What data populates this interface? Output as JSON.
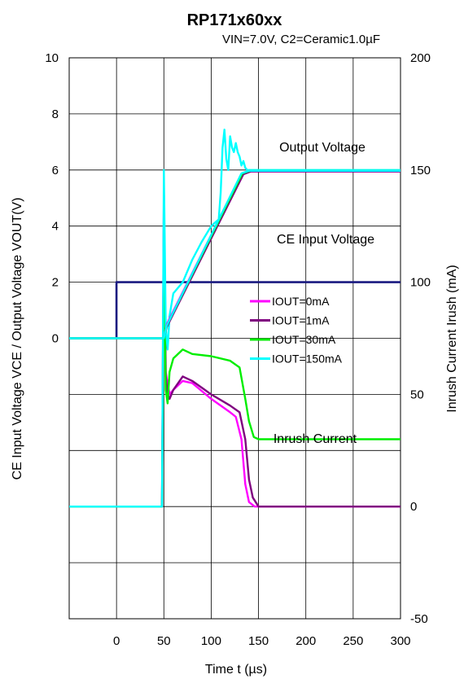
{
  "chart_data": {
    "type": "line",
    "title": "RP171x60xx",
    "subtitle": "VIN=7.0V, C2=Ceramic1.0µF",
    "xlabel": "Time t (µs)",
    "ylabel_left": "CE Input Voltage VCE / Output Voltage VOUT(V)",
    "ylabel_right": "Inrush Current Irush (mA)",
    "xlim": [
      -50,
      300
    ],
    "ylim_left": [
      -10,
      10
    ],
    "ylim_right": [
      -50,
      200
    ],
    "x_ticks": [
      "0",
      "50",
      "100",
      "150",
      "200",
      "250",
      "300"
    ],
    "y_ticks_left": [
      "0",
      "2",
      "4",
      "6",
      "8",
      "10"
    ],
    "y_ticks_right": [
      "-50",
      "0",
      "50",
      "100",
      "150",
      "200"
    ],
    "grid": true,
    "legend_position": "center-right",
    "annotations": {
      "output_voltage": "Output Voltage",
      "ce_input_voltage": "CE Input Voltage",
      "inrush_current": "Inrush Current"
    },
    "ce_input_voltage": {
      "name": "",
      "color": "#1a1a80",
      "axis": "left",
      "x": [
        -50,
        0,
        0,
        300
      ],
      "y": [
        0,
        0,
        2,
        2
      ]
    },
    "series": [
      {
        "name": "IOUT=0mA",
        "color": "#ff00ff",
        "vout": {
          "x": [
            -50,
            50,
            53,
            132,
            140,
            300
          ],
          "y": [
            0,
            0,
            0.5,
            5.85,
            5.95,
            5.95
          ]
        },
        "irush": {
          "x": [
            -50,
            48,
            50,
            52,
            54,
            56,
            60,
            70,
            80,
            100,
            120,
            126,
            132,
            136,
            140,
            146,
            150,
            300
          ],
          "y": [
            0,
            0,
            140,
            60,
            55,
            50,
            52,
            56,
            55,
            48,
            42,
            40,
            30,
            10,
            2,
            0,
            0,
            0
          ]
        }
      },
      {
        "name": "IOUT=1mA",
        "color": "#800080",
        "vout": {
          "x": [
            -50,
            50,
            53,
            134,
            142,
            300
          ],
          "y": [
            0,
            0,
            0.4,
            5.85,
            5.95,
            5.95
          ]
        },
        "irush": {
          "x": [
            -50,
            48,
            50,
            52,
            54,
            56,
            60,
            70,
            80,
            100,
            120,
            130,
            136,
            140,
            144,
            150,
            300
          ],
          "y": [
            0,
            0,
            135,
            58,
            50,
            48,
            52,
            58,
            56,
            50,
            45,
            42,
            30,
            12,
            4,
            0,
            0
          ]
        }
      },
      {
        "name": "IOUT=30mA",
        "color": "#00ee00",
        "vout": {
          "x": [
            -50,
            50,
            53,
            133,
            141,
            300
          ],
          "y": [
            0,
            0,
            0.45,
            5.88,
            5.97,
            5.97
          ]
        },
        "irush": {
          "x": [
            -50,
            48,
            50,
            52,
            54,
            56,
            60,
            70,
            80,
            100,
            120,
            130,
            136,
            140,
            145,
            150,
            300
          ],
          "y": [
            0,
            0,
            120,
            52,
            46,
            60,
            66,
            70,
            68,
            67,
            65,
            62,
            48,
            38,
            31,
            30,
            30
          ]
        }
      },
      {
        "name": "IOUT=150mA",
        "color": "#00ffff",
        "vout": {
          "x": [
            -50,
            50,
            53,
            132,
            140,
            300
          ],
          "y": [
            0,
            0,
            0.45,
            5.88,
            5.97,
            5.97
          ]
        },
        "irush": {
          "x": [
            -50,
            48,
            50,
            52,
            54,
            56,
            60,
            70,
            80,
            90,
            100,
            108,
            110,
            112,
            114,
            116,
            118,
            120,
            122,
            124,
            126,
            128,
            130,
            132,
            134,
            136,
            138,
            140,
            145,
            150,
            300
          ],
          "y": [
            0,
            0,
            150,
            80,
            70,
            85,
            95,
            100,
            110,
            118,
            125,
            128,
            140,
            160,
            168,
            155,
            150,
            165,
            160,
            158,
            162,
            158,
            156,
            152,
            154,
            151,
            150,
            150,
            150,
            150,
            150
          ]
        }
      }
    ]
  }
}
